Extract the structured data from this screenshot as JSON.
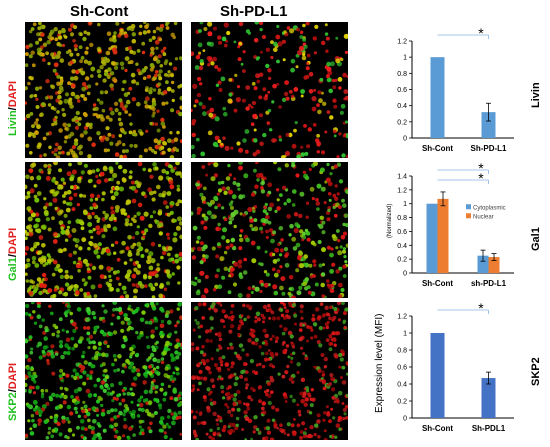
{
  "columns": [
    "Sh-Cont",
    "Sh-PD-L1"
  ],
  "rows": [
    {
      "marker": "Livin",
      "counter": "DAPI",
      "marker_color": "#22c022",
      "counter_color": "#e02020",
      "cond1": "dense_yellow",
      "cond2": "sparse_red"
    },
    {
      "marker": "Gal1",
      "counter": "DAPI",
      "marker_color": "#22c022",
      "counter_color": "#e02020",
      "cond1": "dense_yellowgreen",
      "cond2": "mixed"
    },
    {
      "marker": "SKP2",
      "counter": "DAPI",
      "marker_color": "#22c022",
      "counter_color": "#e02020",
      "cond1": "dense_green",
      "cond2": "dense_red"
    }
  ],
  "shared_ylabel": "Expression level (MFI)",
  "shared_ylabel_sub": "(Normalized)",
  "chart_data": [
    {
      "type": "bar",
      "side_label": "Livin",
      "categories": [
        "Sh-Cont",
        "Sh-PD-L1"
      ],
      "series": [
        {
          "values": [
            1.0,
            0.32
          ],
          "errors": [
            0.0,
            0.11
          ],
          "color": "#5b9bd5"
        }
      ],
      "ylim": [
        0,
        1.2
      ],
      "yticks": [
        0,
        0.2,
        0.4,
        0.6,
        0.8,
        1,
        1.2
      ],
      "significance": [
        "*"
      ]
    },
    {
      "type": "bar",
      "side_label": "Gal1",
      "categories": [
        "Sh-Cont",
        "sh-PD-L1"
      ],
      "series": [
        {
          "name": "Cytoplasmic",
          "values": [
            1.0,
            0.25
          ],
          "errors": [
            0.0,
            0.08
          ],
          "color": "#5b9bd5"
        },
        {
          "name": "Nuclear",
          "values": [
            1.07,
            0.23
          ],
          "errors": [
            0.1,
            0.05
          ],
          "color": "#ed7d31"
        }
      ],
      "ylim": [
        0,
        1.4
      ],
      "yticks": [
        0,
        0.2,
        0.4,
        0.6,
        0.8,
        1,
        1.2,
        1.4
      ],
      "legend": "top-right",
      "significance": [
        "*",
        "*"
      ]
    },
    {
      "type": "bar",
      "side_label": "SKP2",
      "categories": [
        "Sh-Cont",
        "Sh-PDL1"
      ],
      "series": [
        {
          "values": [
            1.0,
            0.47
          ],
          "errors": [
            0.0,
            0.07
          ],
          "color": "#4472c4"
        }
      ],
      "ylim": [
        0,
        1.2
      ],
      "yticks": [
        0,
        0.2,
        0.4,
        0.6,
        0.8,
        1,
        1.2
      ],
      "significance": [
        "*"
      ]
    }
  ]
}
